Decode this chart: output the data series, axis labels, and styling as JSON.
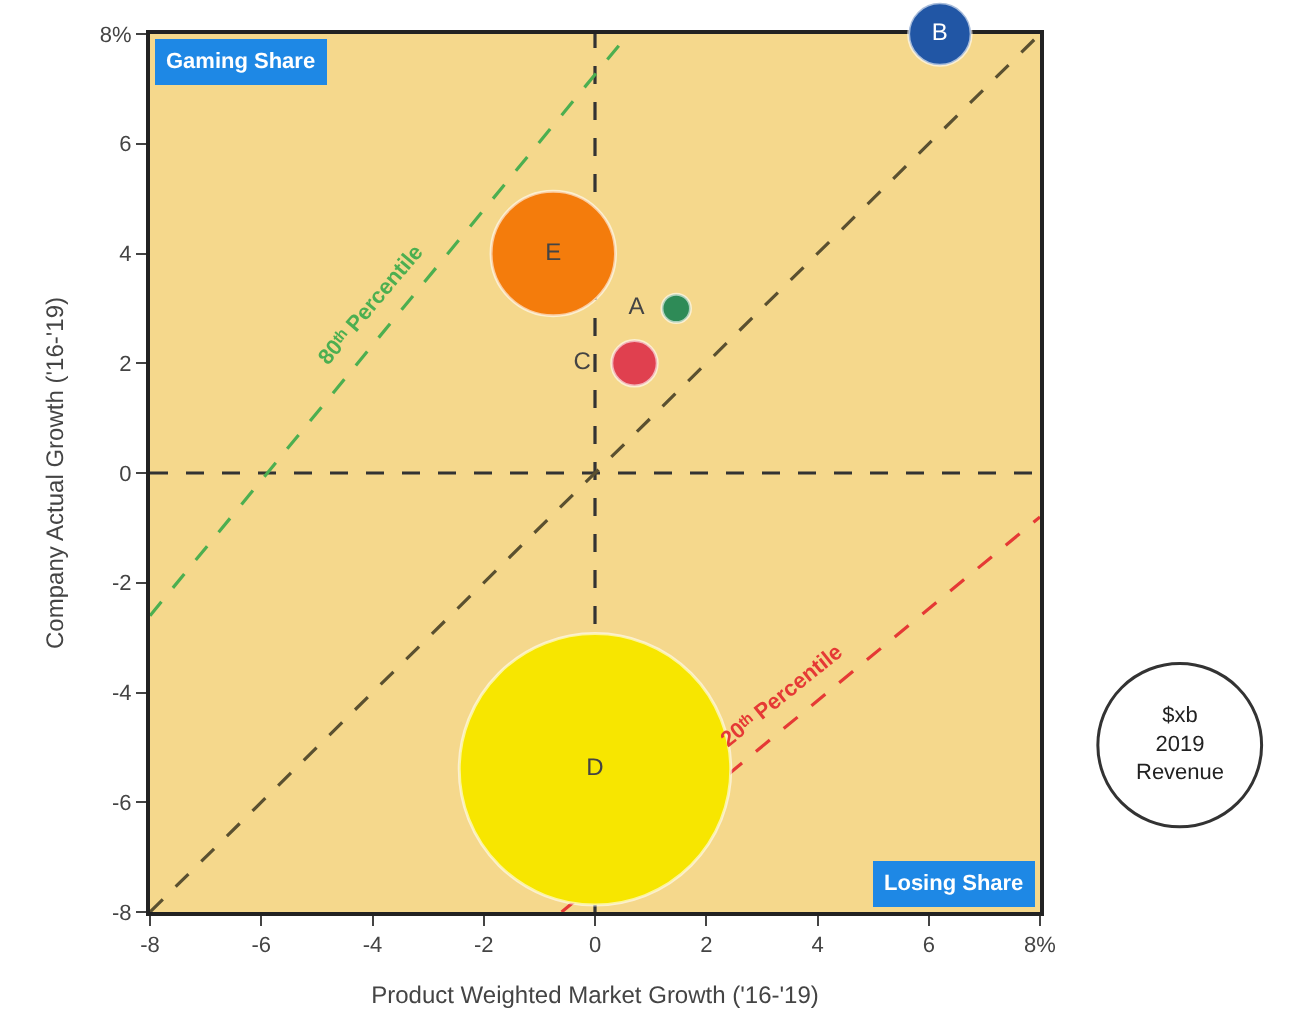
{
  "chart_data": {
    "type": "bubble",
    "xlabel": "Product Weighted Market Growth ('16-'19)",
    "ylabel": "Company Actual Growth ('16-'19)",
    "xlim": [
      -8,
      8
    ],
    "ylim": [
      -8,
      8
    ],
    "xticks": [
      -8,
      -6,
      -4,
      -2,
      0,
      2,
      4,
      6,
      {
        "value": 8,
        "label": "8%"
      }
    ],
    "yticks": [
      -8,
      -6,
      -4,
      -2,
      0,
      2,
      4,
      6,
      {
        "value": 8,
        "label": "8%"
      }
    ],
    "grid": false,
    "annotations": [
      "Gaming Share",
      "Losing Share",
      "$xb\n2019\nRevenue"
    ],
    "series": [
      {
        "type": "line",
        "x": [
          0,
          0
        ],
        "values": [
          -8,
          8
        ],
        "color": "#333333",
        "line_style": "dashed"
      },
      {
        "type": "line",
        "x": [
          -8,
          8
        ],
        "values": [
          0,
          0
        ],
        "color": "#333333",
        "line_style": "dashed"
      },
      {
        "type": "line",
        "x": [
          -8,
          8
        ],
        "values": [
          -8,
          8
        ],
        "color": "#5a5030",
        "line_style": "dashed"
      },
      {
        "type": "line",
        "name": "80ᵗʰ Percentile",
        "x": [
          -8,
          0.6
        ],
        "values": [
          -2.6,
          8
        ],
        "color": "#4caf50",
        "line_style": "dashed"
      },
      {
        "type": "line",
        "name": "20ᵗʰ Percentile",
        "x": [
          -0.6,
          8
        ],
        "values": [
          -8,
          -0.8
        ],
        "color": "#e53935",
        "line_style": "dashed"
      },
      {
        "x": [
          1.46,
          6.2,
          0.71,
          0,
          -0.75
        ],
        "values": [
          3.0,
          8.0,
          2.0,
          -5.4,
          4.0
        ],
        "sizes": [
          0.011,
          0.053,
          0.028,
          1,
          0.21
        ],
        "colors": [
          "#2e8b57",
          "#2156a5",
          "#e0404f",
          "#f7e600",
          "#f47c0c"
        ],
        "value_labels": [
          "A",
          "B",
          "C",
          "D",
          "E"
        ]
      }
    ]
  }
}
